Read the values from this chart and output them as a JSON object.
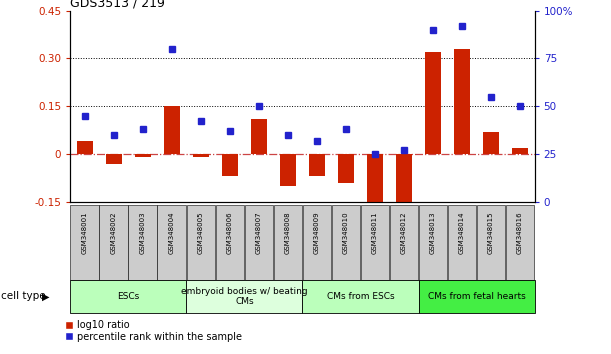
{
  "title": "GDS3513 / 219",
  "samples": [
    "GSM348001",
    "GSM348002",
    "GSM348003",
    "GSM348004",
    "GSM348005",
    "GSM348006",
    "GSM348007",
    "GSM348008",
    "GSM348009",
    "GSM348010",
    "GSM348011",
    "GSM348012",
    "GSM348013",
    "GSM348014",
    "GSM348015",
    "GSM348016"
  ],
  "log10_ratio": [
    0.04,
    -0.03,
    -0.01,
    0.15,
    -0.01,
    -0.07,
    0.11,
    -0.1,
    -0.07,
    -0.09,
    -0.19,
    -0.19,
    0.32,
    0.33,
    0.07,
    0.02
  ],
  "percentile_rank": [
    45,
    35,
    38,
    80,
    42,
    37,
    50,
    35,
    32,
    38,
    25,
    27,
    90,
    92,
    55,
    50
  ],
  "ylim_left": [
    -0.15,
    0.45
  ],
  "ylim_right": [
    0,
    100
  ],
  "yticks_left": [
    -0.15,
    0.0,
    0.15,
    0.3,
    0.45
  ],
  "ytick_labels_left": [
    "-0.15",
    "0",
    "0.15",
    "0.30",
    "0.45"
  ],
  "yticks_right": [
    0,
    25,
    50,
    75,
    100
  ],
  "ytick_labels_right": [
    "0",
    "25",
    "50",
    "75",
    "100%"
  ],
  "hlines": [
    0.15,
    0.3
  ],
  "bar_color": "#cc2200",
  "dot_color": "#2222cc",
  "zero_line_color": "#cc4444",
  "cell_type_groups": [
    {
      "label": "ESCs",
      "start": 0,
      "end": 3,
      "color": "#bbffbb"
    },
    {
      "label": "embryoid bodies w/ beating\nCMs",
      "start": 4,
      "end": 7,
      "color": "#ddffdd"
    },
    {
      "label": "CMs from ESCs",
      "start": 8,
      "end": 11,
      "color": "#bbffbb"
    },
    {
      "label": "CMs from fetal hearts",
      "start": 12,
      "end": 15,
      "color": "#44ee44"
    }
  ],
  "legend_items": [
    {
      "label": "log10 ratio",
      "color": "#cc2200"
    },
    {
      "label": "percentile rank within the sample",
      "color": "#2222cc"
    }
  ],
  "cell_type_label": "cell type",
  "tick_bg_color": "#cccccc"
}
